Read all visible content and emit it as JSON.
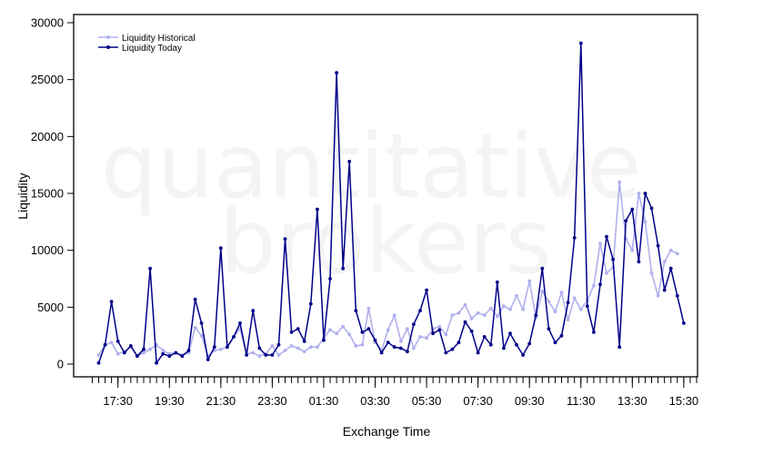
{
  "watermark": {
    "line1": "quantitative",
    "line2": "brokers"
  },
  "chart_data": {
    "type": "line",
    "xlabel": "Exchange Time",
    "ylabel": "Liquidity",
    "ylim": [
      0,
      30000
    ],
    "yticks": [
      0,
      5000,
      10000,
      15000,
      20000,
      25000,
      30000
    ],
    "xlim": [
      -2,
      93
    ],
    "xtick_labels": [
      "17:30",
      "19:30",
      "21:30",
      "23:30",
      "01:30",
      "03:30",
      "05:30",
      "07:30",
      "09:30",
      "11:30",
      "13:30",
      "15:30"
    ],
    "xtick_label_positions": [
      3,
      11,
      19,
      27,
      35,
      43,
      51,
      59,
      67,
      75,
      83,
      91
    ],
    "minor_tick_count": 95,
    "legend_position": "top-left",
    "colors": {
      "historical": "#b0b0ee",
      "today": "#000088"
    },
    "series": [
      {
        "name": "Liquidity Historical",
        "values": [
          800,
          1700,
          1900,
          900,
          1100,
          1500,
          700,
          1000,
          1300,
          1700,
          1200,
          900,
          1000,
          800,
          1000,
          3200,
          2500,
          700,
          1200,
          1300,
          1500,
          2400,
          3100,
          900,
          1000,
          700,
          900,
          1600,
          800,
          1200,
          1600,
          1400,
          1100,
          1500,
          1500,
          2300,
          3000,
          2700,
          3300,
          2600,
          1600,
          1700,
          4900,
          1900,
          1200,
          3000,
          4300,
          2000,
          3100,
          1400,
          2400,
          2300,
          3100,
          3300,
          2600,
          4300,
          4500,
          5200,
          4000,
          4500,
          4300,
          4900,
          4200,
          5100,
          4800,
          6000,
          4800,
          7300,
          4100,
          6400,
          5500,
          4600,
          6300,
          3900,
          5800,
          4800,
          5600,
          6900,
          10600,
          8000,
          8500,
          16000,
          11000,
          10000,
          15000,
          12500,
          8000,
          6000,
          9000,
          10000,
          9700
        ]
      },
      {
        "name": "Liquidity Today",
        "values": [
          100,
          1700,
          5500,
          2000,
          1000,
          1600,
          700,
          1300,
          8400,
          100,
          900,
          700,
          1000,
          700,
          1200,
          5700,
          3600,
          400,
          1500,
          10200,
          1500,
          2400,
          3600,
          800,
          4700,
          1400,
          800,
          800,
          1700,
          11000,
          2800,
          3100,
          2000,
          5300,
          13600,
          2100,
          7500,
          25600,
          8400,
          17800,
          4700,
          2800,
          3100,
          2100,
          1000,
          1900,
          1500,
          1400,
          1100,
          3500,
          4700,
          6500,
          2700,
          3000,
          1000,
          1300,
          1900,
          3700,
          2900,
          1000,
          2400,
          1700,
          7200,
          1400,
          2700,
          1700,
          800,
          1800,
          4300,
          8400,
          3100,
          1900,
          2500,
          5400,
          11100,
          28200,
          5100,
          2800,
          7000,
          11200,
          9200,
          1500,
          12600,
          13600,
          9000,
          15000,
          13700,
          10400,
          6500,
          8400,
          6000,
          3600
        ]
      }
    ]
  }
}
